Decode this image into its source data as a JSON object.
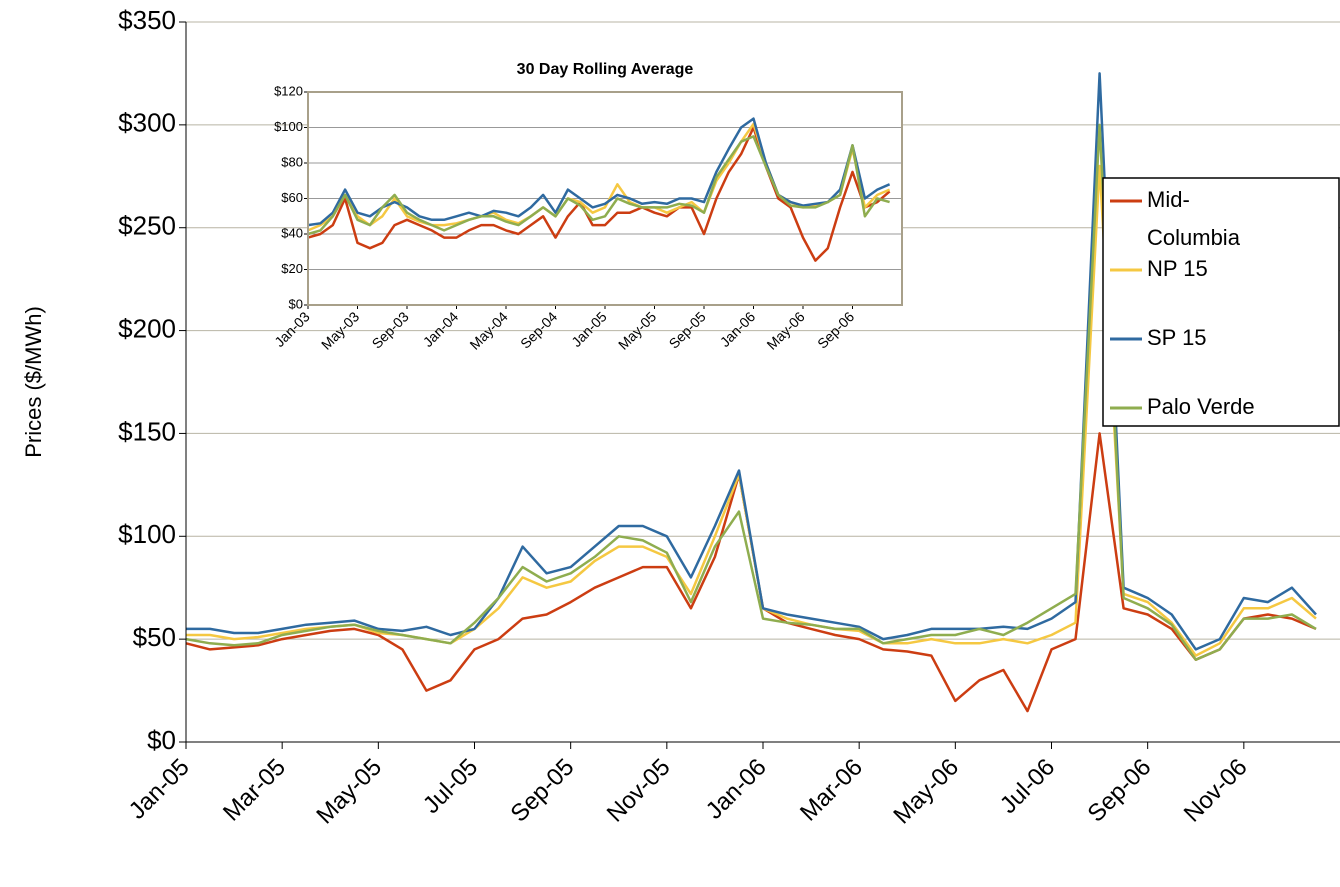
{
  "chart_data": [
    {
      "type": "line",
      "ylabel": "Prices ($/MWh)",
      "categories": [
        "Jan-05",
        null,
        null,
        null,
        "Mar-05",
        null,
        null,
        null,
        "May-05",
        null,
        null,
        null,
        "Jul-05",
        null,
        null,
        null,
        "Sep-05",
        null,
        null,
        null,
        "Nov-05",
        null,
        null,
        null,
        "Jan-06",
        null,
        null,
        null,
        "Mar-06",
        null,
        null,
        null,
        "May-06",
        null,
        null,
        null,
        "Jul-06",
        null,
        null,
        null,
        "Sep-06",
        null,
        null,
        null,
        "Nov-06",
        null,
        null,
        null
      ],
      "series": [
        {
          "name": "Mid-Columbia",
          "color": "#cc3d12",
          "values": [
            48,
            45,
            46,
            47,
            50,
            52,
            54,
            55,
            52,
            45,
            25,
            30,
            45,
            50,
            60,
            62,
            68,
            75,
            80,
            85,
            85,
            65,
            90,
            130,
            65,
            58,
            55,
            52,
            50,
            45,
            44,
            42,
            20,
            30,
            35,
            15,
            45,
            50,
            150,
            65,
            62,
            55,
            40,
            45,
            60,
            62,
            60,
            55
          ]
        },
        {
          "name": "NP 15",
          "color": "#f5c842",
          "values": [
            52,
            52,
            50,
            51,
            53,
            55,
            56,
            57,
            53,
            52,
            50,
            48,
            55,
            65,
            80,
            75,
            78,
            88,
            95,
            95,
            90,
            72,
            100,
            130,
            65,
            60,
            57,
            55,
            54,
            48,
            48,
            50,
            48,
            48,
            50,
            48,
            52,
            58,
            280,
            72,
            68,
            58,
            42,
            48,
            65,
            65,
            70,
            60
          ]
        },
        {
          "name": "SP 15",
          "color": "#2f6aa0",
          "values": [
            55,
            55,
            53,
            53,
            55,
            57,
            58,
            59,
            55,
            54,
            56,
            52,
            55,
            70,
            95,
            82,
            85,
            95,
            105,
            105,
            100,
            80,
            105,
            132,
            65,
            62,
            60,
            58,
            56,
            50,
            52,
            55,
            55,
            55,
            56,
            55,
            60,
            68,
            325,
            75,
            70,
            62,
            45,
            50,
            70,
            68,
            75,
            62
          ]
        },
        {
          "name": "Palo Verde",
          "color": "#8fad4f",
          "values": [
            50,
            48,
            47,
            48,
            52,
            54,
            56,
            57,
            54,
            52,
            50,
            48,
            58,
            70,
            85,
            78,
            82,
            90,
            100,
            98,
            92,
            68,
            95,
            112,
            60,
            58,
            57,
            55,
            55,
            48,
            50,
            52,
            52,
            55,
            52,
            58,
            65,
            72,
            300,
            70,
            65,
            57,
            40,
            45,
            60,
            60,
            62,
            55
          ]
        }
      ],
      "ylim": [
        0,
        350
      ],
      "yticks": [
        {
          "value": 0,
          "label": "$0"
        },
        {
          "value": 50,
          "label": "$50"
        },
        {
          "value": 100,
          "label": "$100"
        },
        {
          "value": 150,
          "label": "$150"
        },
        {
          "value": 200,
          "label": "$200"
        },
        {
          "value": 250,
          "label": "$250"
        },
        {
          "value": 300,
          "label": "$300"
        },
        {
          "value": 350,
          "label": "$350"
        }
      ],
      "grid": true,
      "legend": "right"
    },
    {
      "type": "line",
      "title": "30 Day Rolling Average",
      "categories": [
        "Jan-03",
        null,
        null,
        null,
        "May-03",
        null,
        null,
        null,
        "Sep-03",
        null,
        null,
        null,
        "Jan-04",
        null,
        null,
        null,
        "May-04",
        null,
        null,
        null,
        "Sep-04",
        null,
        null,
        null,
        "Jan-05",
        null,
        null,
        null,
        "May-05",
        null,
        null,
        null,
        "Sep-05",
        null,
        null,
        null,
        "Jan-06",
        null,
        null,
        null,
        "May-06",
        null,
        null,
        null,
        "Sep-06",
        null,
        null,
        null
      ],
      "series": [
        {
          "color": "#cc3d12",
          "values": [
            38,
            40,
            45,
            60,
            35,
            32,
            35,
            45,
            48,
            45,
            42,
            38,
            38,
            42,
            45,
            45,
            42,
            40,
            45,
            50,
            38,
            50,
            58,
            45,
            45,
            52,
            52,
            55,
            52,
            50,
            55,
            55,
            40,
            60,
            75,
            85,
            100,
            78,
            60,
            55,
            38,
            25,
            32,
            55,
            75,
            55,
            58,
            64
          ]
        },
        {
          "color": "#f5c842",
          "values": [
            42,
            45,
            50,
            62,
            50,
            45,
            50,
            60,
            50,
            47,
            45,
            45,
            46,
            48,
            50,
            52,
            48,
            46,
            50,
            55,
            50,
            60,
            58,
            52,
            55,
            68,
            58,
            55,
            55,
            52,
            55,
            58,
            52,
            70,
            80,
            92,
            102,
            80,
            62,
            58,
            55,
            56,
            58,
            62,
            88,
            55,
            62,
            65
          ]
        },
        {
          "color": "#2f6aa0",
          "values": [
            45,
            46,
            52,
            65,
            52,
            50,
            55,
            58,
            55,
            50,
            48,
            48,
            50,
            52,
            50,
            53,
            52,
            50,
            55,
            62,
            52,
            65,
            60,
            55,
            57,
            62,
            60,
            57,
            58,
            57,
            60,
            60,
            58,
            75,
            88,
            100,
            105,
            80,
            62,
            58,
            56,
            57,
            58,
            65,
            90,
            60,
            65,
            68
          ]
        },
        {
          "color": "#8fad4f",
          "values": [
            40,
            42,
            50,
            62,
            48,
            45,
            55,
            62,
            52,
            48,
            45,
            42,
            45,
            48,
            50,
            50,
            47,
            45,
            50,
            55,
            50,
            60,
            56,
            48,
            50,
            60,
            57,
            55,
            55,
            55,
            57,
            56,
            52,
            72,
            82,
            92,
            95,
            78,
            62,
            56,
            55,
            55,
            58,
            62,
            90,
            50,
            60,
            58
          ]
        }
      ],
      "ylim": [
        0,
        120
      ],
      "yticks": [
        {
          "value": 0,
          "label": "$0"
        },
        {
          "value": 20,
          "label": "$20"
        },
        {
          "value": 40,
          "label": "$40"
        },
        {
          "value": 60,
          "label": "$60"
        },
        {
          "value": 80,
          "label": "$80"
        },
        {
          "value": 100,
          "label": "$100"
        },
        {
          "value": 120,
          "label": "$120"
        }
      ],
      "grid": true
    }
  ]
}
